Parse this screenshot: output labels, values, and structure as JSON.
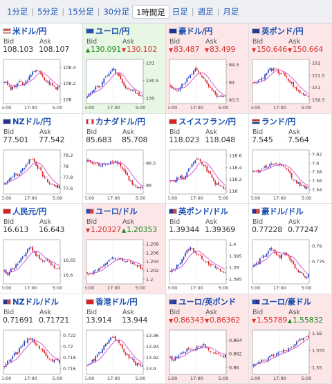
{
  "tabs": [
    "1分足",
    "5分足",
    "15分足",
    "30分足",
    "1時間足",
    "日足",
    "週足",
    "月足"
  ],
  "active_tab": 4,
  "labels": {
    "bid": "Bid",
    "ask": "Ask"
  },
  "x_ticks": [
    "5:00",
    "17:00",
    "5:00"
  ],
  "colors": {
    "up_bg": "#e8f7e4",
    "down_bg": "#fde6e8",
    "up_text": "#1b8a1b",
    "down_text": "#d6332d",
    "bull": "#1d3fc4",
    "bear": "#e02020",
    "ma": "#cc33cc"
  },
  "pairs": [
    {
      "name": "米ドル/円",
      "flag": "flag-us-icon",
      "bid": "108.103",
      "ask": "108.107",
      "dir": "none",
      "bid_dir": "none",
      "ask_dir": "none",
      "yticks": [
        "108.4",
        "108.2",
        "108"
      ],
      "yrange": [
        107.95,
        108.5
      ]
    },
    {
      "name": "ユーロ/円",
      "flag": "flag-eu-icon",
      "bid": "130.091",
      "ask": "130.102",
      "dir": "up",
      "bid_dir": "up",
      "ask_dir": "down",
      "yticks": [
        "131",
        "130.5",
        "130"
      ],
      "yrange": [
        129.85,
        131.1
      ]
    },
    {
      "name": "豪ドル/円",
      "flag": "flag-au-icon",
      "bid": "83.487",
      "ask": "83.499",
      "dir": "down",
      "bid_dir": "down",
      "ask_dir": "down",
      "yticks": [
        "84.5",
        "84",
        "83.5"
      ],
      "yrange": [
        83.4,
        84.65
      ]
    },
    {
      "name": "英ポンド/円",
      "flag": "flag-gb-icon",
      "bid": "150.646",
      "ask": "150.664",
      "dir": "down",
      "bid_dir": "down",
      "ask_dir": "down",
      "yticks": [
        "152",
        "151.5",
        "151",
        "150.5"
      ],
      "yrange": [
        150.35,
        152.15
      ]
    },
    {
      "name": "NZドル/円",
      "flag": "flag-nz-icon",
      "bid": "77.501",
      "ask": "77.542",
      "dir": "none",
      "bid_dir": "none",
      "ask_dir": "none",
      "yticks": [
        "78.2",
        "78",
        "77.8",
        "77.6"
      ],
      "yrange": [
        77.5,
        78.3
      ]
    },
    {
      "name": "カナダドル/円",
      "flag": "flag-ca-icon",
      "bid": "85.683",
      "ask": "85.708",
      "dir": "none",
      "bid_dir": "none",
      "ask_dir": "none",
      "yticks": [
        "86.5",
        "86"
      ],
      "yrange": [
        85.8,
        86.8
      ]
    },
    {
      "name": "スイスフラン/円",
      "flag": "flag-ch-icon",
      "bid": "118.023",
      "ask": "118.048",
      "dir": "none",
      "bid_dir": "none",
      "ask_dir": "none",
      "yticks": [
        "118.6",
        "118.4",
        "118.2",
        "118"
      ],
      "yrange": [
        117.95,
        118.7
      ]
    },
    {
      "name": "ランド/円",
      "flag": "flag-za-icon",
      "bid": "7.545",
      "ask": "7.564",
      "dir": "none",
      "bid_dir": "none",
      "ask_dir": "none",
      "yticks": [
        "7.62",
        "7.6",
        "7.58",
        "7.56",
        "7.54"
      ],
      "yrange": [
        7.53,
        7.63
      ]
    },
    {
      "name": "人民元/円",
      "flag": "flag-cn-icon",
      "bid": "16.613",
      "ask": "16.643",
      "dir": "none",
      "bid_dir": "none",
      "ask_dir": "none",
      "yticks": [
        "16.65",
        "16.6"
      ],
      "yrange": [
        16.57,
        16.72
      ]
    },
    {
      "name": "ユーロ/ドル",
      "flag": "flag-eu-us-icon",
      "bid": "1.20327",
      "ask": "1.20353",
      "dir": "down",
      "bid_dir": "down",
      "ask_dir": "up",
      "yticks": [
        "1.208",
        "1.206",
        "1.204",
        "1.202",
        "1.2"
      ],
      "yrange": [
        1.199,
        1.209
      ]
    },
    {
      "name": "英ポンド/ドル",
      "flag": "flag-gb-us-icon",
      "bid": "1.39344",
      "ask": "1.39369",
      "dir": "none",
      "bid_dir": "none",
      "ask_dir": "none",
      "yticks": [
        "1.4",
        "1.395",
        "1.39",
        "1.385"
      ],
      "yrange": [
        1.383,
        1.402
      ]
    },
    {
      "name": "豪ドル/ドル",
      "flag": "flag-au-us-icon",
      "bid": "0.77228",
      "ask": "0.77247",
      "dir": "none",
      "bid_dir": "none",
      "ask_dir": "none",
      "yticks": [
        "0.78",
        "0.775"
      ],
      "yrange": [
        0.768,
        0.782
      ]
    },
    {
      "name": "NZドル/ドル",
      "flag": "flag-nz-us-icon",
      "bid": "0.71691",
      "ask": "0.71721",
      "dir": "none",
      "bid_dir": "none",
      "ask_dir": "none",
      "yticks": [
        "0.722",
        "0.72",
        "0.718",
        "0.716"
      ],
      "yrange": [
        0.715,
        0.723
      ]
    },
    {
      "name": "香港ドル/円",
      "flag": "flag-hk-icon",
      "bid": "13.914",
      "ask": "13.944",
      "dir": "none",
      "bid_dir": "none",
      "ask_dir": "none",
      "yticks": [
        "13.96",
        "13.94",
        "13.92",
        "13.9"
      ],
      "yrange": [
        13.89,
        13.97
      ]
    },
    {
      "name": "ユーロ/英ポンド",
      "flag": "flag-eu-gb-icon",
      "bid": "0.86343",
      "ask": "0.86362",
      "dir": "down",
      "bid_dir": "down",
      "ask_dir": "down",
      "yticks": [
        "0.864",
        "0.862",
        "0.86"
      ],
      "yrange": [
        0.859,
        0.8655
      ]
    },
    {
      "name": "ユーロ/豪ドル",
      "flag": "flag-eu-au-icon",
      "bid": "1.55789",
      "ask": "1.55832",
      "dir": "down",
      "bid_dir": "down",
      "ask_dir": "up",
      "yticks": [
        "1.56",
        "1.555",
        "1.55"
      ],
      "yrange": [
        1.548,
        1.561
      ]
    }
  ]
}
